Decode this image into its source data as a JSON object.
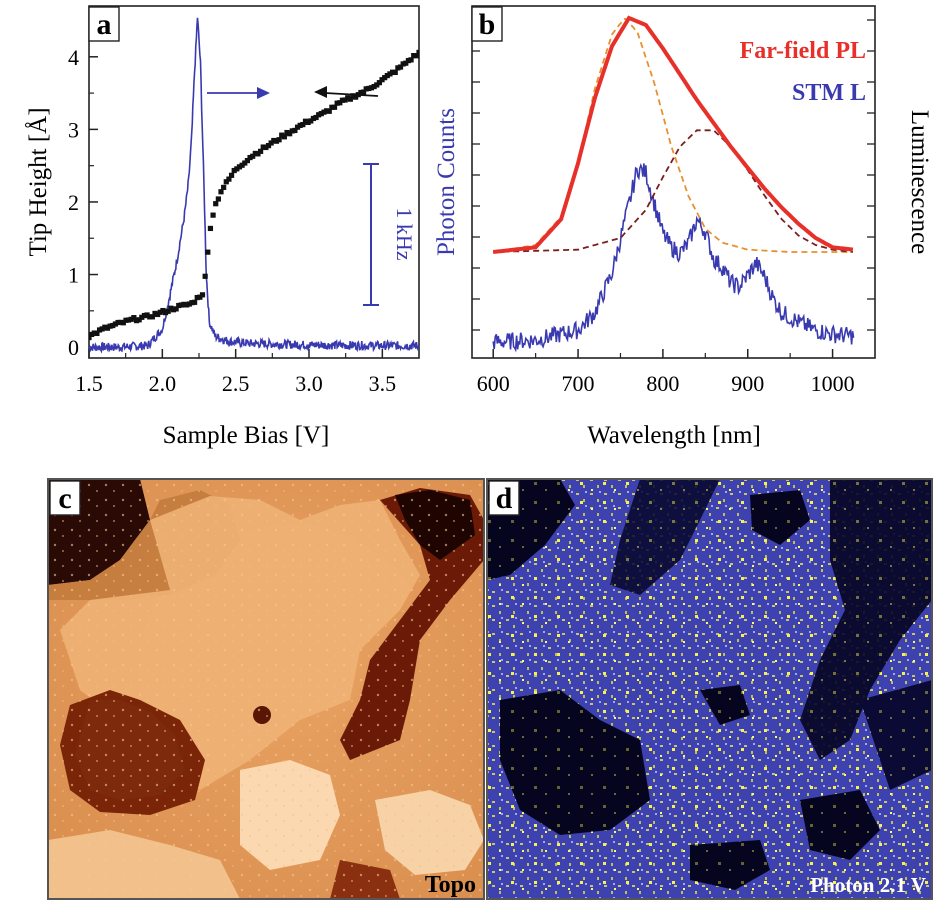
{
  "chart_data": [
    {
      "panel": "a",
      "type": "line",
      "xlabel": "Sample Bias [V]",
      "ylabel": "Tip Height [Å]",
      "ylabel_right": "Photon Counts",
      "xlim": [
        1.5,
        3.75
      ],
      "ylim": [
        -0.15,
        4.7
      ],
      "x_ticks": [
        "1.5",
        "2.0",
        "2.5",
        "3.0",
        "3.5"
      ],
      "y_ticks": [
        "0",
        "1",
        "2",
        "3",
        "4"
      ],
      "scale_bar_label": "1 kHz",
      "series": [
        {
          "color": "#111111",
          "marker": "square",
          "axis": "left",
          "x": [
            1.5,
            1.6,
            1.7,
            1.8,
            1.9,
            2.0,
            2.1,
            2.2,
            2.28,
            2.3,
            2.33,
            2.36,
            2.4,
            2.45,
            2.5,
            2.6,
            2.7,
            2.8,
            2.9,
            3.0,
            3.1,
            3.2,
            3.3,
            3.4,
            3.5,
            3.6,
            3.7,
            3.75
          ],
          "y": [
            0.15,
            0.25,
            0.32,
            0.38,
            0.42,
            0.48,
            0.55,
            0.6,
            0.75,
            1.1,
            1.7,
            1.95,
            2.15,
            2.3,
            2.45,
            2.62,
            2.75,
            2.88,
            3.0,
            3.12,
            3.22,
            3.35,
            3.45,
            3.55,
            3.68,
            3.82,
            3.98,
            4.05
          ]
        },
        {
          "color": "#3a3ab0",
          "marker": "none",
          "axis": "right",
          "x": [
            1.5,
            1.7,
            1.9,
            2.0,
            2.05,
            2.1,
            2.15,
            2.18,
            2.2,
            2.22,
            2.24,
            2.26,
            2.28,
            2.3,
            2.32,
            2.36,
            2.45,
            2.6,
            3.0,
            3.5,
            3.75
          ],
          "y": [
            0.0,
            0.0,
            0.02,
            0.25,
            0.7,
            1.2,
            1.8,
            2.3,
            2.9,
            3.8,
            4.55,
            3.9,
            2.5,
            1.0,
            0.35,
            0.15,
            0.08,
            0.05,
            0.03,
            0.02,
            0.02
          ]
        }
      ]
    },
    {
      "panel": "b",
      "type": "line",
      "xlabel": "Wavelength [nm]",
      "ylabel_right": "Luminescence",
      "xlim": [
        575,
        1050
      ],
      "x_ticks": [
        "600",
        "700",
        "800",
        "900",
        "1000"
      ],
      "series": [
        {
          "name": "Far-field PL",
          "color": "#e8302a",
          "x": [
            600,
            650,
            680,
            700,
            720,
            740,
            760,
            780,
            800,
            820,
            840,
            860,
            880,
            900,
            920,
            940,
            960,
            980,
            1000,
            1025
          ],
          "y": [
            0.0,
            0.02,
            0.14,
            0.38,
            0.66,
            0.88,
            1.0,
            0.97,
            0.87,
            0.76,
            0.65,
            0.55,
            0.45,
            0.36,
            0.27,
            0.19,
            0.12,
            0.06,
            0.02,
            0.01
          ]
        },
        {
          "name": "STM L",
          "color": "#3a3ab0",
          "x": [
            600,
            650,
            700,
            720,
            740,
            760,
            770,
            780,
            790,
            800,
            810,
            820,
            830,
            840,
            850,
            860,
            870,
            880,
            890,
            900,
            910,
            920,
            930,
            940,
            960,
            980,
            1000,
            1025
          ],
          "y": [
            0.0,
            0.01,
            0.06,
            0.15,
            0.35,
            0.7,
            0.88,
            0.86,
            0.7,
            0.55,
            0.48,
            0.45,
            0.5,
            0.62,
            0.56,
            0.42,
            0.38,
            0.3,
            0.28,
            0.34,
            0.4,
            0.33,
            0.22,
            0.15,
            0.1,
            0.06,
            0.04,
            0.03
          ]
        },
        {
          "color": "#e89030",
          "dashed": true,
          "x": [
            600,
            650,
            680,
            700,
            720,
            740,
            755,
            770,
            790,
            810,
            830,
            850,
            870,
            900,
            950,
            1025
          ],
          "y": [
            0.0,
            0.03,
            0.15,
            0.38,
            0.7,
            0.93,
            1.0,
            0.94,
            0.72,
            0.45,
            0.24,
            0.1,
            0.04,
            0.01,
            0.0,
            0.0
          ]
        },
        {
          "color": "#7a1f1f",
          "dashed": true,
          "x": [
            600,
            700,
            750,
            780,
            800,
            820,
            840,
            860,
            880,
            900,
            920,
            940,
            960,
            980,
            1000,
            1025
          ],
          "y": [
            0.0,
            0.01,
            0.06,
            0.18,
            0.32,
            0.45,
            0.52,
            0.52,
            0.45,
            0.35,
            0.24,
            0.14,
            0.07,
            0.03,
            0.01,
            0.0
          ]
        }
      ]
    }
  ],
  "panels": {
    "a": {
      "label": "a"
    },
    "b": {
      "label": "b"
    },
    "c": {
      "label": "c",
      "caption": "Topo"
    },
    "d": {
      "label": "d",
      "caption": "Photon 2.1 V"
    }
  }
}
